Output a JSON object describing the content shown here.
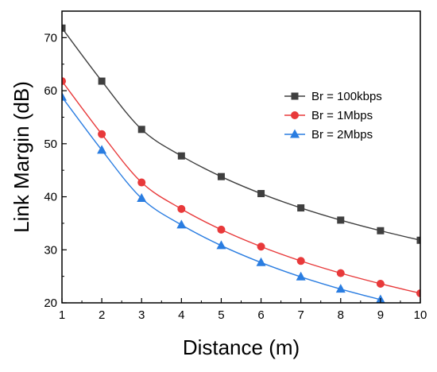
{
  "chart_data": {
    "type": "line",
    "title": "",
    "xlabel": "Distance (m)",
    "ylabel": "Link Margin (dB)",
    "xlim": [
      1,
      10
    ],
    "ylim": [
      20,
      75
    ],
    "x_ticks": [
      1,
      2,
      3,
      4,
      5,
      6,
      7,
      8,
      9,
      10
    ],
    "y_ticks": [
      20,
      30,
      40,
      50,
      60,
      70
    ],
    "grid": false,
    "legend_position": "right",
    "series": [
      {
        "name": "Br = 100kbps",
        "marker": "square",
        "color": "#3f3f3f",
        "x": [
          1,
          2,
          3,
          4,
          5,
          6,
          7,
          8,
          9,
          10
        ],
        "values": [
          71.8,
          61.8,
          52.7,
          47.7,
          43.8,
          40.6,
          37.9,
          35.6,
          33.6,
          31.8
        ]
      },
      {
        "name": "Br = 1Mbps",
        "marker": "circle",
        "color": "#e8393a",
        "x": [
          1,
          2,
          3,
          4,
          5,
          6,
          7,
          8,
          9,
          10
        ],
        "values": [
          61.8,
          51.8,
          42.7,
          37.7,
          33.8,
          30.6,
          27.9,
          25.6,
          23.6,
          21.8
        ]
      },
      {
        "name": "Br = 2Mbps",
        "marker": "triangle",
        "color": "#2a7de1",
        "x": [
          1,
          2,
          3,
          4,
          5,
          6,
          7,
          8,
          9
        ],
        "values": [
          58.8,
          48.8,
          39.7,
          34.7,
          30.8,
          27.6,
          24.9,
          22.6,
          20.6
        ]
      }
    ]
  }
}
